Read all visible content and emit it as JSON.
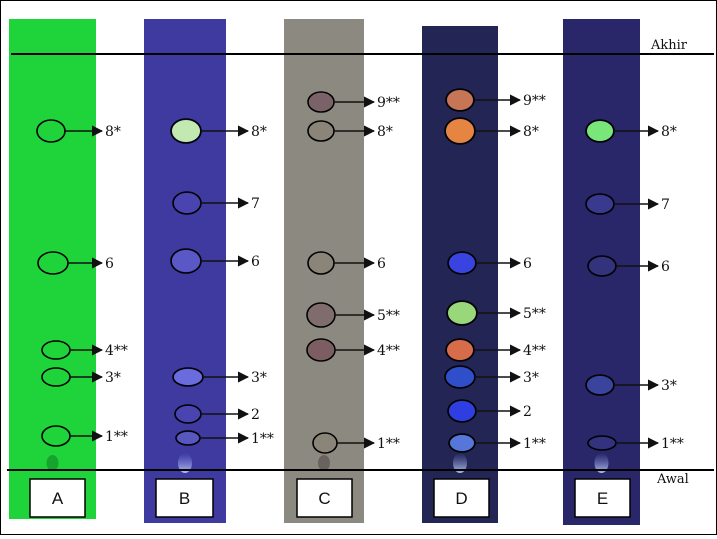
{
  "lines": {
    "top_label": "Akhir",
    "bottom_label": "Awal"
  },
  "plates": [
    {
      "id": "A",
      "box_label": "A",
      "fill": "#1fd33a",
      "spots": [
        {
          "label": "8*",
          "color": "none"
        },
        {
          "label": "6",
          "color": "none"
        },
        {
          "label": "4**",
          "color": "none"
        },
        {
          "label": "3*",
          "color": "none"
        },
        {
          "label": "1**",
          "color": "none"
        }
      ]
    },
    {
      "id": "B",
      "box_label": "B",
      "fill": "#3f3aa0",
      "spots": [
        {
          "label": "8*",
          "color": "#c9f2b0"
        },
        {
          "label": "7",
          "color": "#4a45b0"
        },
        {
          "label": "6",
          "color": "#5c58c8"
        },
        {
          "label": "3*",
          "color": "#6d6fe0"
        },
        {
          "label": "2",
          "color": "#4a45b0"
        },
        {
          "label": "1**",
          "color": "#5a58c0"
        }
      ]
    },
    {
      "id": "C",
      "box_label": "C",
      "fill": "#8c8a80",
      "spots": [
        {
          "label": "9**",
          "color": "#7a5f66"
        },
        {
          "label": "8*",
          "color": "#8a8478"
        },
        {
          "label": "6",
          "color": "#8a8478"
        },
        {
          "label": "5**",
          "color": "#806a6c"
        },
        {
          "label": "4**",
          "color": "#7c5a60"
        },
        {
          "label": "1**",
          "color": "#8a8478"
        }
      ]
    },
    {
      "id": "D",
      "box_label": "D",
      "fill": "#232655",
      "spots": [
        {
          "label": "9**",
          "color": "#d07a55"
        },
        {
          "label": "8*",
          "color": "#f08a40"
        },
        {
          "label": "6",
          "color": "#3a45e8"
        },
        {
          "label": "5**",
          "color": "#9fe07c"
        },
        {
          "label": "4**",
          "color": "#e0704a"
        },
        {
          "label": "3*",
          "color": "#3050d0"
        },
        {
          "label": "2",
          "color": "#2f3fe8"
        },
        {
          "label": "1**",
          "color": "#5a7ae0"
        }
      ]
    },
    {
      "id": "E",
      "box_label": "E",
      "fill": "#29266a",
      "spots": [
        {
          "label": "8*",
          "color": "#7cf07a"
        },
        {
          "label": "7",
          "color": "#3a3a92"
        },
        {
          "label": "6",
          "color": "#33337e"
        },
        {
          "label": "3*",
          "color": "#3c46a0"
        },
        {
          "label": "1**",
          "color": "#333380"
        }
      ]
    }
  ]
}
